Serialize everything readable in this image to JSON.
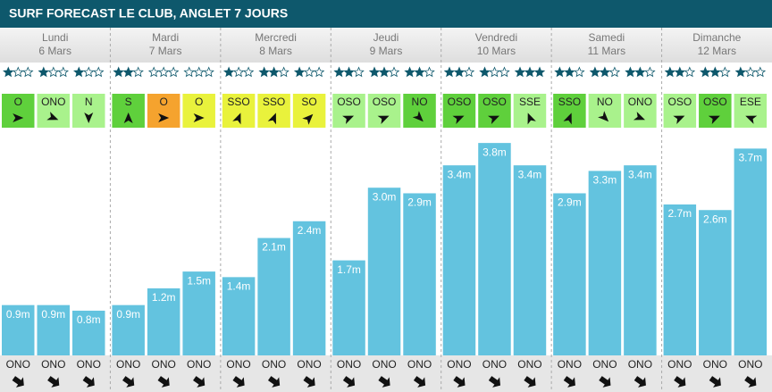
{
  "header": {
    "title": "SURF FORECAST LE CLUB, ANGLET 7 JOURS"
  },
  "days": [
    {
      "name": "Lundi",
      "date": "6 Mars",
      "slots": [
        {
          "stars": 1,
          "wind": {
            "direction": "O",
            "color": "#5fd03c",
            "angle": 90
          },
          "height": 0.9,
          "height_label": "0.9m",
          "swell": "ONO"
        },
        {
          "stars": 1,
          "wind": {
            "direction": "ONO",
            "color": "#a9f28c",
            "angle": 112
          },
          "height": 0.9,
          "height_label": "0.9m",
          "swell": "ONO"
        },
        {
          "stars": 1,
          "wind": {
            "direction": "N",
            "color": "#a9f28c",
            "angle": 180
          },
          "height": 0.8,
          "height_label": "0.8m",
          "swell": "ONO"
        }
      ]
    },
    {
      "name": "Mardi",
      "date": "7 Mars",
      "slots": [
        {
          "stars": 2,
          "wind": {
            "direction": "S",
            "color": "#5fd03c",
            "angle": 0
          },
          "height": 0.9,
          "height_label": "0.9m",
          "swell": "ONO"
        },
        {
          "stars": 0,
          "wind": {
            "direction": "O",
            "color": "#f5a32e",
            "angle": 90
          },
          "height": 1.2,
          "height_label": "1.2m",
          "swell": "ONO"
        },
        {
          "stars": 0,
          "wind": {
            "direction": "O",
            "color": "#e9f23c",
            "angle": 90
          },
          "height": 1.5,
          "height_label": "1.5m",
          "swell": "ONO"
        }
      ]
    },
    {
      "name": "Mercredi",
      "date": "8 Mars",
      "slots": [
        {
          "stars": 1,
          "wind": {
            "direction": "SSO",
            "color": "#e9f23c",
            "angle": 22
          },
          "height": 1.4,
          "height_label": "1.4m",
          "swell": "ONO"
        },
        {
          "stars": 2,
          "wind": {
            "direction": "SSO",
            "color": "#e9f23c",
            "angle": 22
          },
          "height": 2.1,
          "height_label": "2.1m",
          "swell": "ONO"
        },
        {
          "stars": 1,
          "wind": {
            "direction": "SO",
            "color": "#e9f23c",
            "angle": 45
          },
          "height": 2.4,
          "height_label": "2.4m",
          "swell": "ONO"
        }
      ]
    },
    {
      "name": "Jeudi",
      "date": "9 Mars",
      "slots": [
        {
          "stars": 2,
          "wind": {
            "direction": "OSO",
            "color": "#a9f28c",
            "angle": 67
          },
          "height": 1.7,
          "height_label": "1.7m",
          "swell": "ONO"
        },
        {
          "stars": 2,
          "wind": {
            "direction": "OSO",
            "color": "#a9f28c",
            "angle": 67
          },
          "height": 3.0,
          "height_label": "3.0m",
          "swell": "ONO"
        },
        {
          "stars": 2,
          "wind": {
            "direction": "NO",
            "color": "#5fd03c",
            "angle": 135
          },
          "height": 2.9,
          "height_label": "2.9m",
          "swell": "ONO"
        }
      ]
    },
    {
      "name": "Vendredi",
      "date": "10 Mars",
      "slots": [
        {
          "stars": 2,
          "wind": {
            "direction": "OSO",
            "color": "#5fd03c",
            "angle": 67
          },
          "height": 3.4,
          "height_label": "3.4m",
          "swell": "ONO"
        },
        {
          "stars": 1,
          "wind": {
            "direction": "OSO",
            "color": "#5fd03c",
            "angle": 67
          },
          "height": 3.8,
          "height_label": "3.8m",
          "swell": "ONO"
        },
        {
          "stars": 3,
          "wind": {
            "direction": "SSE",
            "color": "#a9f28c",
            "angle": 338
          },
          "height": 3.4,
          "height_label": "3.4m",
          "swell": "ONO"
        }
      ]
    },
    {
      "name": "Samedi",
      "date": "11 Mars",
      "slots": [
        {
          "stars": 2,
          "wind": {
            "direction": "SSO",
            "color": "#5fd03c",
            "angle": 22
          },
          "height": 2.9,
          "height_label": "2.9m",
          "swell": "ONO"
        },
        {
          "stars": 2,
          "wind": {
            "direction": "NO",
            "color": "#a9f28c",
            "angle": 135
          },
          "height": 3.3,
          "height_label": "3.3m",
          "swell": "ONO"
        },
        {
          "stars": 2,
          "wind": {
            "direction": "ONO",
            "color": "#a9f28c",
            "angle": 112
          },
          "height": 3.4,
          "height_label": "3.4m",
          "swell": "ONO"
        }
      ]
    },
    {
      "name": "Dimanche",
      "date": "12 Mars",
      "slots": [
        {
          "stars": 2,
          "wind": {
            "direction": "OSO",
            "color": "#a9f28c",
            "angle": 67
          },
          "height": 2.7,
          "height_label": "2.7m",
          "swell": "ONO"
        },
        {
          "stars": 2,
          "wind": {
            "direction": "OSO",
            "color": "#5fd03c",
            "angle": 67
          },
          "height": 2.6,
          "height_label": "2.6m",
          "swell": "ONO"
        },
        {
          "stars": 1,
          "wind": {
            "direction": "ESE",
            "color": "#a9f28c",
            "angle": 292
          },
          "height": 3.7,
          "height_label": "3.7m",
          "swell": "ONO"
        }
      ]
    }
  ]
}
